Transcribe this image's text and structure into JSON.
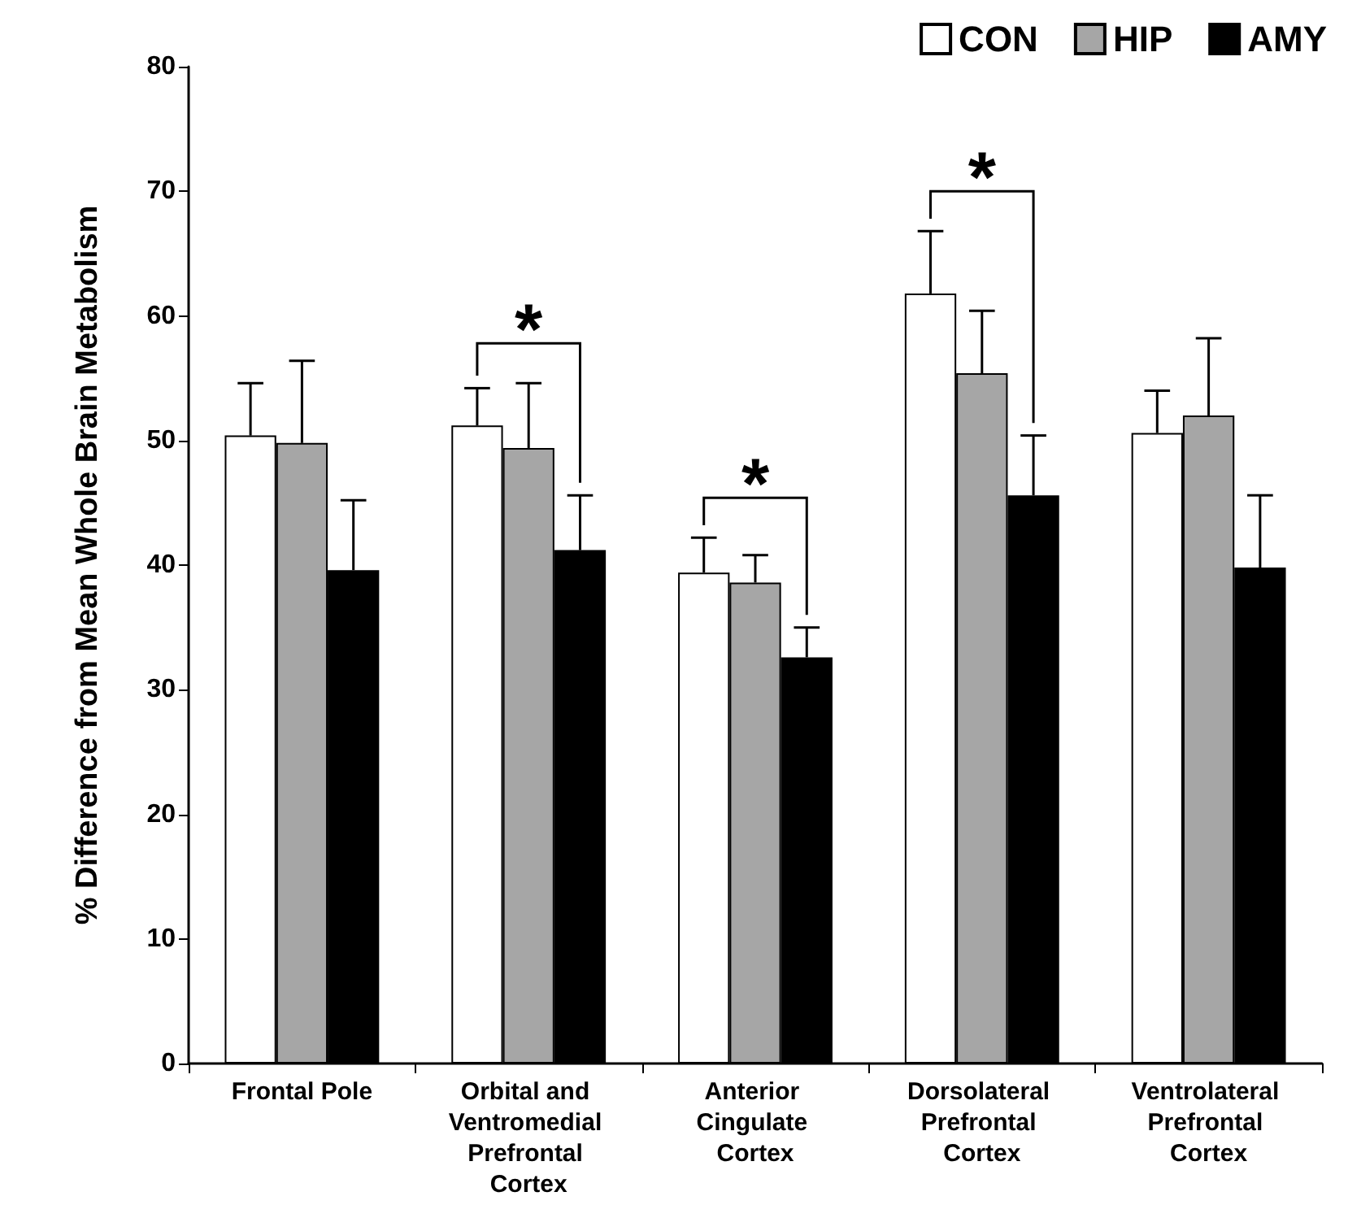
{
  "chart_data": {
    "type": "bar",
    "ylabel": "% Difference from Mean Whole Brain Metabolism",
    "categories": [
      "Frontal Pole",
      "Orbital and Ventromedial Prefrontal Cortex",
      "Anterior Cingulate Cortex",
      "Dorsolateral Prefrontal Cortex",
      "Ventrolateral Prefrontal Cortex"
    ],
    "series": [
      {
        "name": "CON",
        "color": "#ffffff",
        "values": [
          50.4,
          51.2,
          39.4,
          61.8,
          50.6
        ],
        "errors": [
          [
            50.4,
            54.6
          ],
          [
            51.2,
            54.2
          ],
          [
            39.4,
            42.2
          ],
          [
            61.8,
            66.8
          ],
          [
            50.6,
            54.0
          ]
        ]
      },
      {
        "name": "HIP",
        "color": "#a6a6a6",
        "values": [
          49.8,
          49.4,
          38.6,
          55.4,
          52.0
        ],
        "errors": [
          [
            49.8,
            56.4
          ],
          [
            49.4,
            54.6
          ],
          [
            38.6,
            40.8
          ],
          [
            55.4,
            60.4
          ],
          [
            52.0,
            58.2
          ]
        ]
      },
      {
        "name": "AMY",
        "color": "#000000",
        "values": [
          39.6,
          41.2,
          32.6,
          45.6,
          39.8
        ],
        "errors": [
          [
            39.6,
            45.2
          ],
          [
            41.2,
            45.6
          ],
          [
            32.6,
            35.0
          ],
          [
            45.6,
            50.4
          ],
          [
            39.8,
            45.6
          ]
        ]
      }
    ],
    "annotations": [
      "*",
      "*",
      "*"
    ],
    "ylim": [
      0,
      80
    ],
    "yticks": [
      0,
      10,
      20,
      30,
      40,
      50,
      60,
      70,
      80
    ],
    "grid": false,
    "legend": "top right"
  }
}
